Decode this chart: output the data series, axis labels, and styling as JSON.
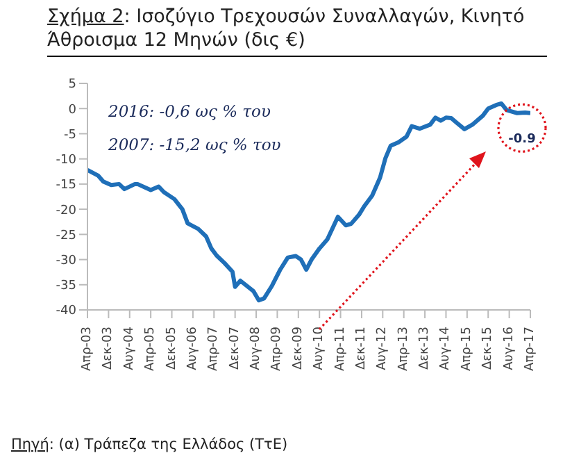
{
  "chart_data": {
    "type": "line",
    "title": "Σχήμα 2: Ισοζύγιο Τρεχουσών Συναλλαγών, Κινητό Άθροισμα 12 Μηνών (δις €)",
    "x": [
      "2003-04",
      "2003-08",
      "2003-10",
      "2004-01",
      "2004-04",
      "2004-06",
      "2004-10",
      "2004-11",
      "2005-04",
      "2005-07",
      "2005-09",
      "2006-01",
      "2006-04",
      "2006-06",
      "2006-10",
      "2007-01",
      "2007-03",
      "2007-05",
      "2007-08",
      "2007-11",
      "2007-12",
      "2008-02",
      "2008-07",
      "2008-09",
      "2008-11",
      "2009-02",
      "2009-05",
      "2009-08",
      "2009-11",
      "2010-01",
      "2010-03",
      "2010-05",
      "2010-08",
      "2010-11",
      "2011-03",
      "2011-06",
      "2011-08",
      "2011-11",
      "2012-01",
      "2012-04",
      "2012-07",
      "2012-09",
      "2012-11",
      "2013-02",
      "2013-05",
      "2013-07",
      "2013-10",
      "2014-02",
      "2014-04",
      "2014-06",
      "2014-08",
      "2014-10",
      "2014-12",
      "2015-03",
      "2015-06",
      "2015-10",
      "2015-12",
      "2016-03",
      "2016-05",
      "2016-07",
      "2016-11",
      "2017-02",
      "2017-04"
    ],
    "series": [
      {
        "color": "#1f6fb8",
        "values": [
          -12.2,
          -13.3,
          -14.5,
          -15.2,
          -15.0,
          -16.0,
          -15.0,
          -15.0,
          -16.2,
          -15.5,
          -16.6,
          -18,
          -20,
          -22.8,
          -23.9,
          -25.4,
          -27.8,
          -29.2,
          -30.7,
          -32.4,
          -35.4,
          -34.2,
          -36.3,
          -38.1,
          -37.7,
          -35.2,
          -32.1,
          -29.6,
          -29.3,
          -30,
          -32,
          -30,
          -27.8,
          -26,
          -21.5,
          -23.2,
          -22.9,
          -21.1,
          -19.4,
          -17.3,
          -13.7,
          -9.9,
          -7.4,
          -6.7,
          -5.6,
          -3.5,
          -4.0,
          -3.2,
          -1.8,
          -2.4,
          -1.8,
          -1.9,
          -2.8,
          -4.1,
          -3.2,
          -1.4,
          0,
          0.7,
          1.0,
          -0.3,
          -0.9,
          -0.8,
          -0.9
        ]
      }
    ],
    "xlim": [
      "2003-04",
      "2017-04"
    ],
    "xticks": [
      {
        "value": "2003-04",
        "label": "Απρ-03"
      },
      {
        "value": "2003-12",
        "label": "Δεκ-03"
      },
      {
        "value": "2004-08",
        "label": "Αυγ-04"
      },
      {
        "value": "2005-04",
        "label": "Απρ-05"
      },
      {
        "value": "2005-12",
        "label": "Δεκ-05"
      },
      {
        "value": "2006-08",
        "label": "Αυγ-06"
      },
      {
        "value": "2007-04",
        "label": "Απρ-07"
      },
      {
        "value": "2007-12",
        "label": "Δεκ-07"
      },
      {
        "value": "2008-08",
        "label": "Αυγ-08"
      },
      {
        "value": "2009-04",
        "label": "Απρ-09"
      },
      {
        "value": "2009-12",
        "label": "Δεκ-09"
      },
      {
        "value": "2010-08",
        "label": "Αυγ-10"
      },
      {
        "value": "2011-04",
        "label": "Απρ-11"
      },
      {
        "value": "2011-12",
        "label": "Δεκ-11"
      },
      {
        "value": "2012-08",
        "label": "Αυγ-12"
      },
      {
        "value": "2013-04",
        "label": "Απρ-13"
      },
      {
        "value": "2013-12",
        "label": "Δεκ-13"
      },
      {
        "value": "2014-08",
        "label": "Αυγ-14"
      },
      {
        "value": "2015-04",
        "label": "Απρ-15"
      },
      {
        "value": "2015-12",
        "label": "Δεκ-15"
      },
      {
        "value": "2016-08",
        "label": "Αυγ-16"
      },
      {
        "value": "2017-04",
        "label": "Απρ-17"
      }
    ],
    "ylim": [
      -40,
      5
    ],
    "yticks": [
      -40,
      -35,
      -30,
      -25,
      -20,
      -15,
      -10,
      -5,
      0,
      5
    ],
    "grid": false,
    "legend": false,
    "marker": "none",
    "line_style": "solid",
    "annotations": [
      "2016: -0,6 ως % του",
      "2007: -15,2 ως % του",
      {
        "text": "-0.9",
        "x": "2017-04",
        "y": -0.9
      },
      "Πηγή: (α) Τράπεζα της Ελλάδος (ΤτΕ)"
    ]
  }
}
